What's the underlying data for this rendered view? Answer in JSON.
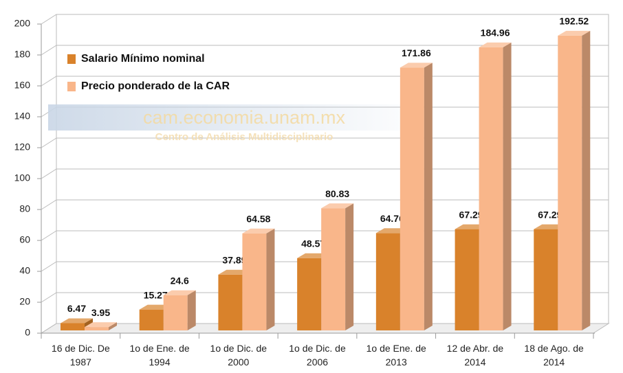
{
  "chart_data": {
    "type": "bar3d",
    "categories": [
      "16 de Dic. De 1987",
      "1o de Ene. de 1994",
      "1o de Dic. de 2000",
      "1o de Dic. de 2006",
      "1o de Ene. de 2013",
      "12 de Abr. de 2014",
      "18 de Ago. de 2014"
    ],
    "series": [
      {
        "name": "Salario Mínimo nominal",
        "color": "#d9822b",
        "values": [
          6.47,
          15.27,
          37.89,
          48.57,
          64.76,
          67.29,
          67.29
        ]
      },
      {
        "name": "Precio ponderado de la CAR",
        "color": "#f9b68a",
        "values": [
          3.95,
          24.6,
          64.58,
          80.83,
          171.86,
          184.96,
          192.52
        ]
      }
    ],
    "ylim": [
      0,
      200
    ],
    "yticks": [
      0,
      20,
      40,
      60,
      80,
      100,
      120,
      140,
      160,
      180,
      200
    ],
    "grid": true,
    "legend": "upper left",
    "annotations": [
      "cam.economia.unam.mx",
      "Centro de Análisis Multidisciplinario"
    ]
  }
}
